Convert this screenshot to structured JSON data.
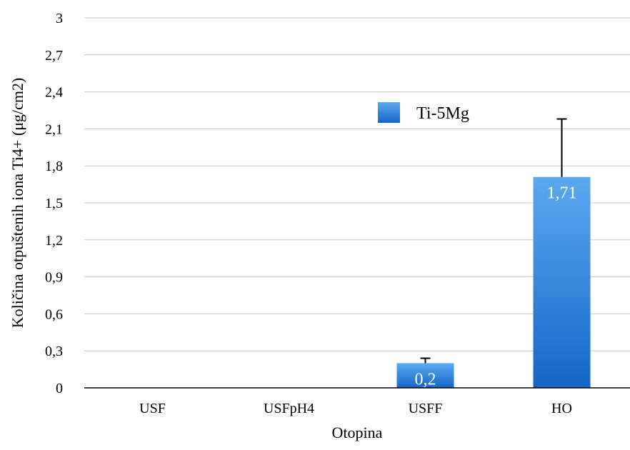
{
  "chart_data": {
    "type": "bar",
    "title": "",
    "xlabel": "Otopina",
    "ylabel": "Količina otpuštenih iona Ti4+ (μg/cm2)",
    "categories": [
      "USF",
      "USFpH4",
      "USFF",
      "HO"
    ],
    "series": [
      {
        "name": "Ti-5Mg",
        "values": [
          null,
          null,
          0.2,
          1.71
        ],
        "data_labels": [
          "",
          "",
          "0,2",
          "1,71"
        ],
        "error_plus": [
          null,
          null,
          0.04,
          0.47
        ],
        "color_top": "#5aaaf0",
        "color_bottom": "#1565c8"
      }
    ],
    "ylim": [
      0,
      3
    ],
    "yticks": [
      0,
      0.3,
      0.6,
      0.9,
      1.2,
      1.5,
      1.8,
      2.1,
      2.4,
      2.7,
      3
    ],
    "ytick_labels": [
      "0",
      "0,3",
      "0,6",
      "0,9",
      "1,2",
      "1,5",
      "1,8",
      "2,1",
      "2,4",
      "2,7",
      "3"
    ],
    "grid": true,
    "legend_position": "top-right",
    "colors": {
      "grid": "#c8c8c8",
      "axis": "#000000",
      "text": "#000000",
      "data_label": "#ffffff"
    }
  }
}
